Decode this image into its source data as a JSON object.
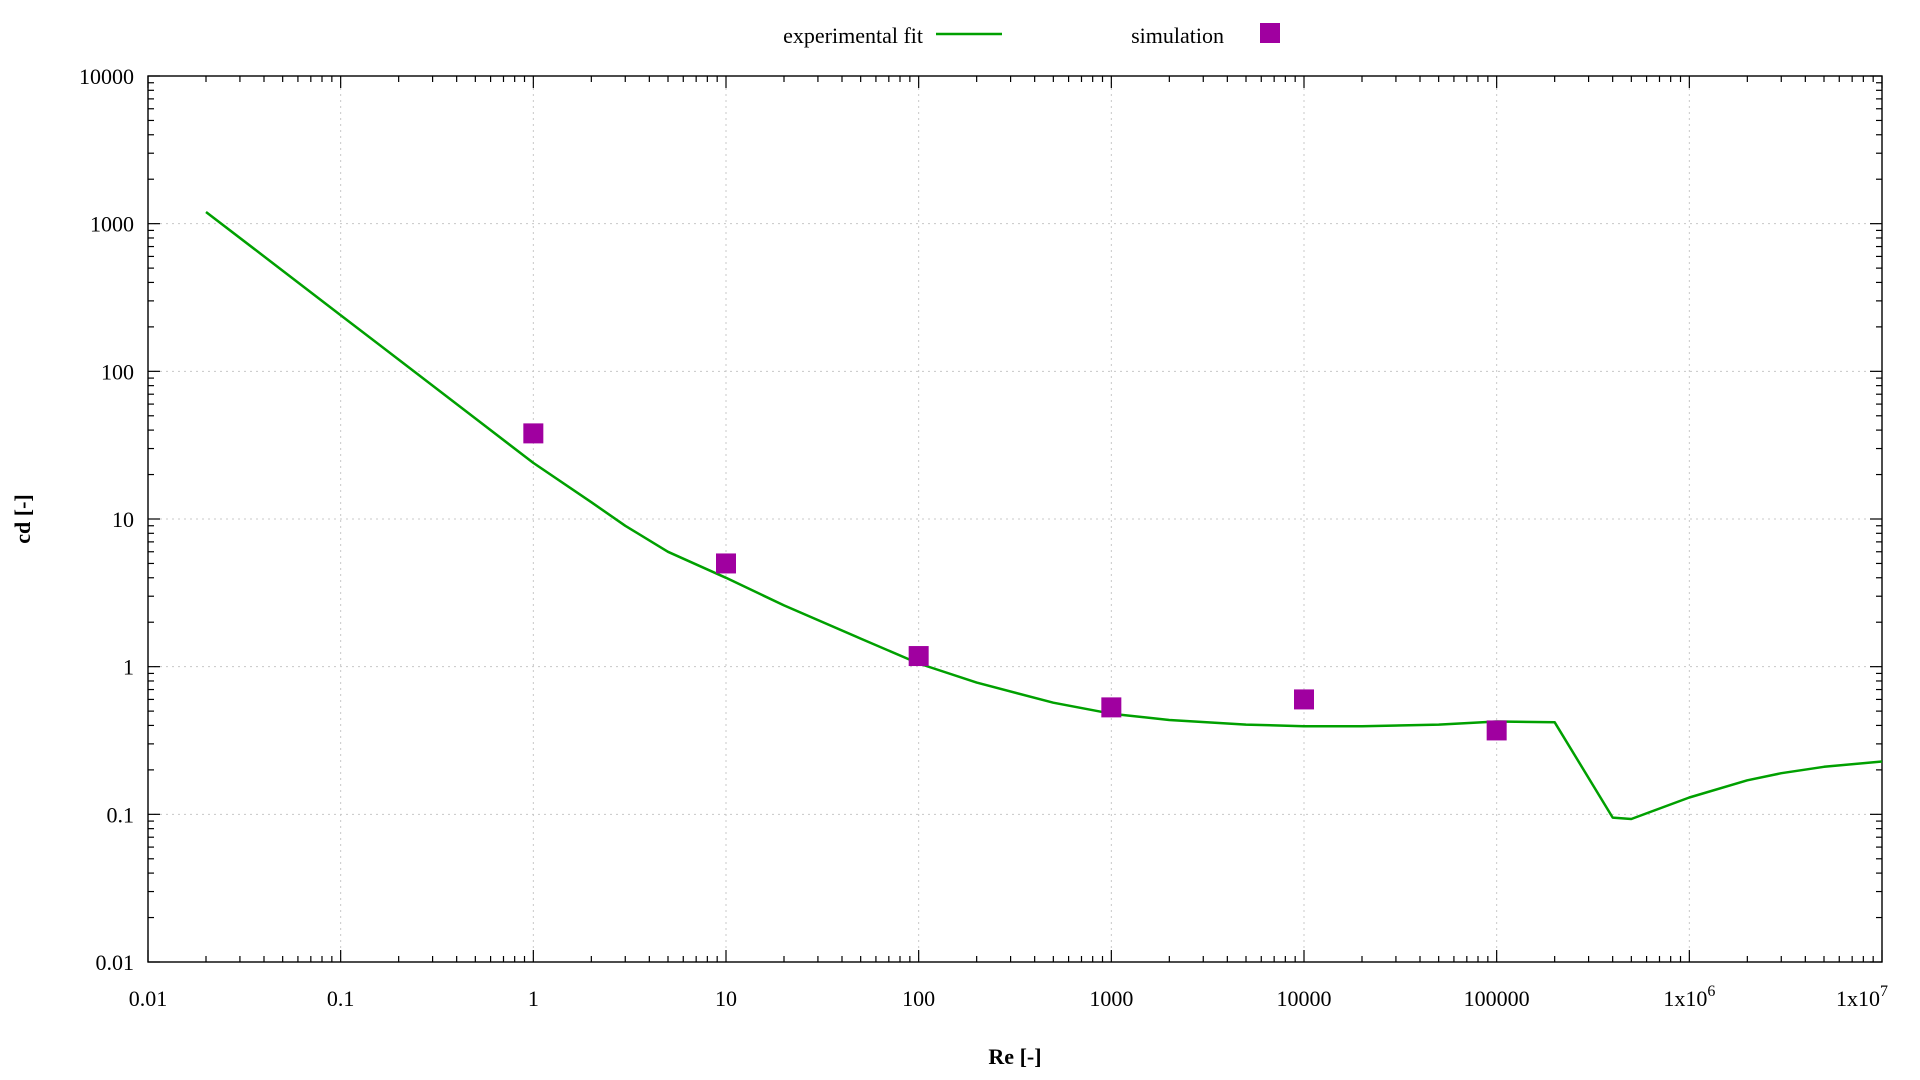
{
  "chart_data": {
    "type": "line",
    "xlabel": "Re [-]",
    "ylabel": "cd [-]",
    "xscale": "log",
    "yscale": "log",
    "xlim": [
      0.01,
      10000000
    ],
    "ylim": [
      0.01,
      10000
    ],
    "grid": true,
    "legend_position": "top-center",
    "x_tick_labels": [
      "0.01",
      "0.1",
      "1",
      "10",
      "100",
      "1000",
      "10000",
      "100000",
      "1x10",
      "1x10"
    ],
    "x_tick_exponents": [
      "",
      "",
      "",
      "",
      "",
      "",
      "",
      "",
      "6",
      "7"
    ],
    "y_tick_labels": [
      "0.01",
      "0.1",
      "1",
      "10",
      "100",
      "1000",
      "10000"
    ],
    "series": [
      {
        "name": "experimental fit",
        "kind": "line",
        "color": "#00a000",
        "x": [
          0.02,
          0.05,
          0.1,
          0.2,
          0.5,
          1,
          2,
          3,
          5,
          10,
          20,
          50,
          100,
          200,
          500,
          1000,
          2000,
          5000,
          10000,
          20000,
          50000,
          100000,
          200000,
          400000,
          500000,
          1000000,
          2000000,
          3000000,
          5000000,
          10000000
        ],
        "y": [
          1200,
          480,
          240,
          120,
          48,
          24,
          13,
          9,
          6,
          4,
          2.6,
          1.55,
          1.05,
          0.78,
          0.57,
          0.48,
          0.435,
          0.405,
          0.395,
          0.395,
          0.405,
          0.425,
          0.42,
          0.095,
          0.093,
          0.13,
          0.17,
          0.19,
          0.21,
          0.228
        ]
      },
      {
        "name": "simulation",
        "kind": "scatter",
        "marker": "square",
        "color": "#a000a0",
        "x": [
          1,
          10,
          100,
          1000,
          10000,
          100000
        ],
        "y": [
          38,
          5,
          1.18,
          0.53,
          0.6,
          0.37
        ]
      }
    ]
  }
}
